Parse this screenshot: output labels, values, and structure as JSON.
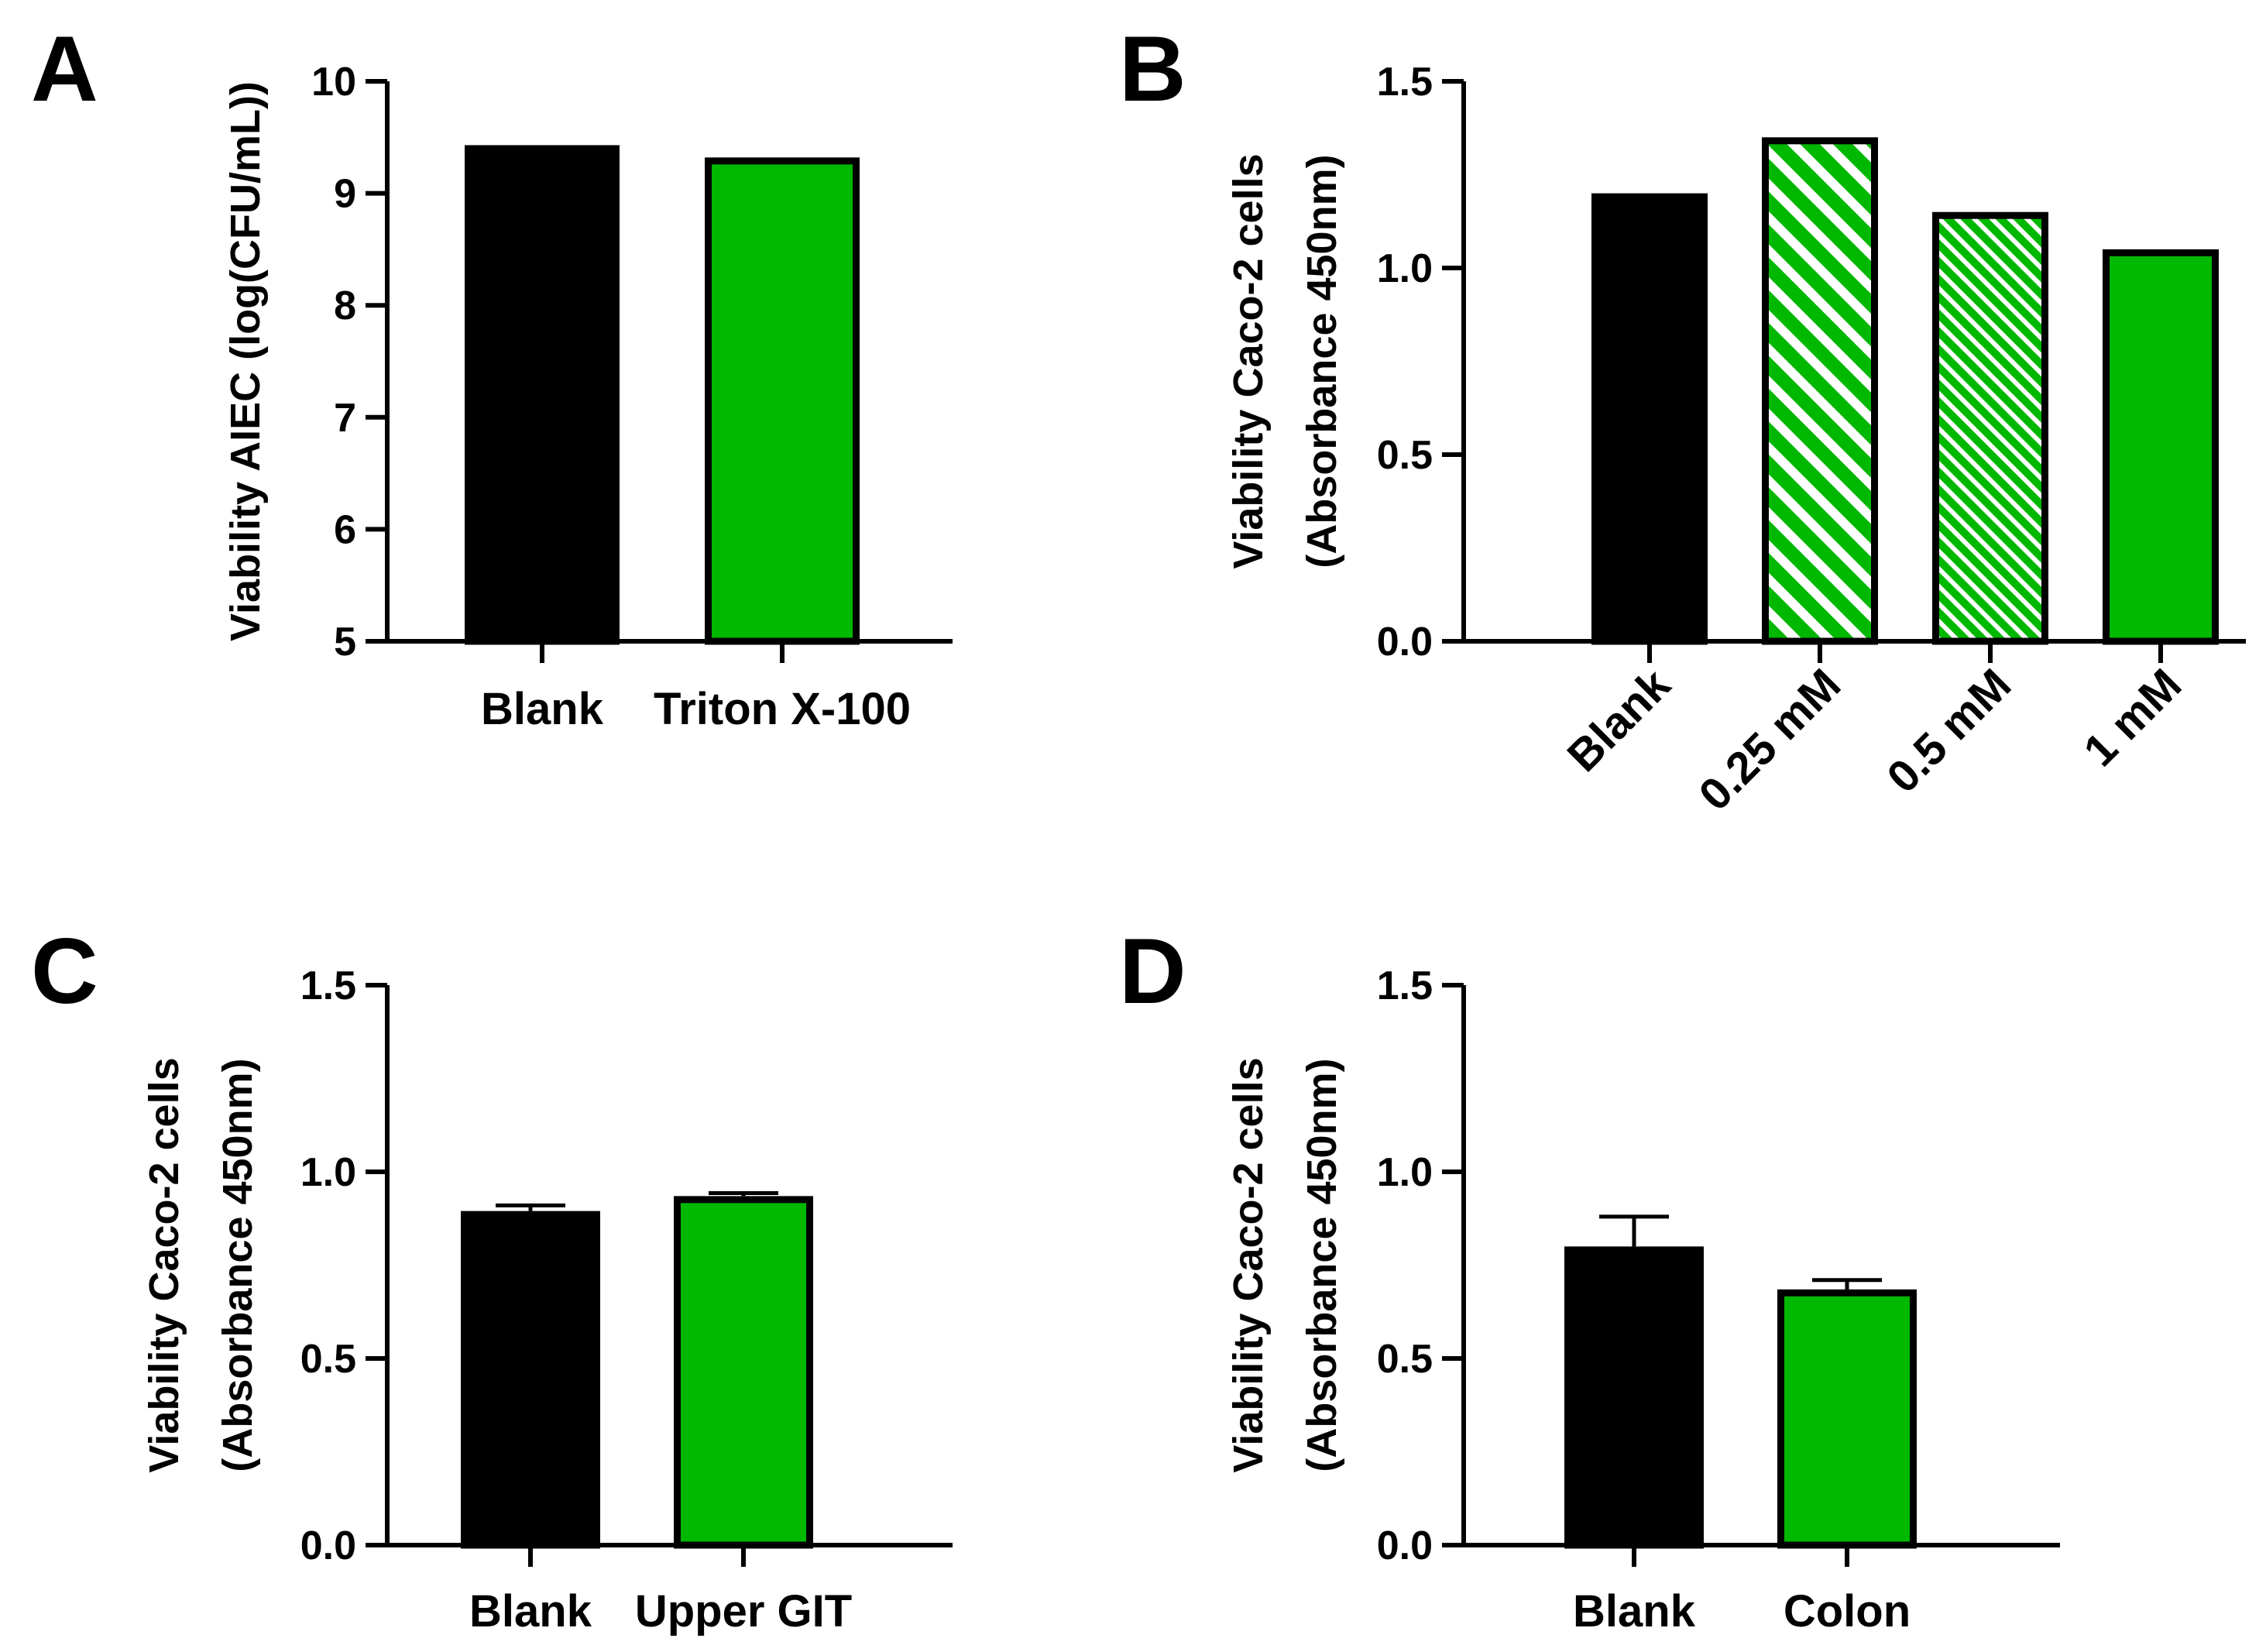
{
  "colors": {
    "blank": "#000000",
    "treated": "#00b800",
    "outline": "#000000"
  },
  "chart_data": [
    {
      "panel": "A",
      "type": "bar",
      "categories": [
        "Blank",
        "Triton X-100"
      ],
      "values": [
        9.43,
        9.32
      ],
      "errors": [
        null,
        null
      ],
      "fills": [
        "solid-black",
        "solid-green"
      ],
      "ylabel": [
        "Viability AIEC (log(CFU/mL))"
      ],
      "ylim": [
        5,
        10
      ],
      "yticks": [
        "5",
        "6",
        "7",
        "8",
        "9",
        "10"
      ],
      "xlabel": "",
      "grid": false,
      "rotated_labels": false
    },
    {
      "panel": "B",
      "type": "bar",
      "categories": [
        "Blank",
        "0.25 mM",
        "0.5 mM",
        "1 mM"
      ],
      "values": [
        1.2,
        1.35,
        1.15,
        1.05
      ],
      "errors": [
        null,
        null,
        null,
        null
      ],
      "fills": [
        "solid-black",
        "hatch-wide",
        "hatch-fine",
        "solid-green"
      ],
      "ylabel": [
        "Viability Caco-2 cells",
        "(Absorbance 450nm)"
      ],
      "ylim": [
        0,
        1.5
      ],
      "yticks": [
        "0.0",
        "0.5",
        "1.0",
        "1.5"
      ],
      "xlabel": "",
      "grid": false,
      "rotated_labels": true
    },
    {
      "panel": "C",
      "type": "bar",
      "categories": [
        "Blank",
        "Upper GIT"
      ],
      "values": [
        0.895,
        0.935
      ],
      "errors": [
        0.015,
        0.008
      ],
      "fills": [
        "solid-black",
        "solid-green"
      ],
      "ylabel": [
        "Viability Caco-2 cells",
        "(Absorbance 450nm)"
      ],
      "ylim": [
        0,
        1.5
      ],
      "yticks": [
        "0.0",
        "0.5",
        "1.0",
        "1.5"
      ],
      "xlabel": "",
      "grid": false,
      "rotated_labels": false
    },
    {
      "panel": "D",
      "type": "bar",
      "categories": [
        "Blank",
        "Colon"
      ],
      "values": [
        0.8,
        0.685
      ],
      "errors": [
        0.08,
        0.025
      ],
      "fills": [
        "solid-black",
        "solid-green"
      ],
      "ylabel": [
        "Viability Caco-2 cells",
        "(Absorbance 450nm)"
      ],
      "ylim": [
        0,
        1.5
      ],
      "yticks": [
        "0.0",
        "0.5",
        "1.0",
        "1.5"
      ],
      "xlabel": "",
      "grid": false,
      "rotated_labels": false
    }
  ]
}
